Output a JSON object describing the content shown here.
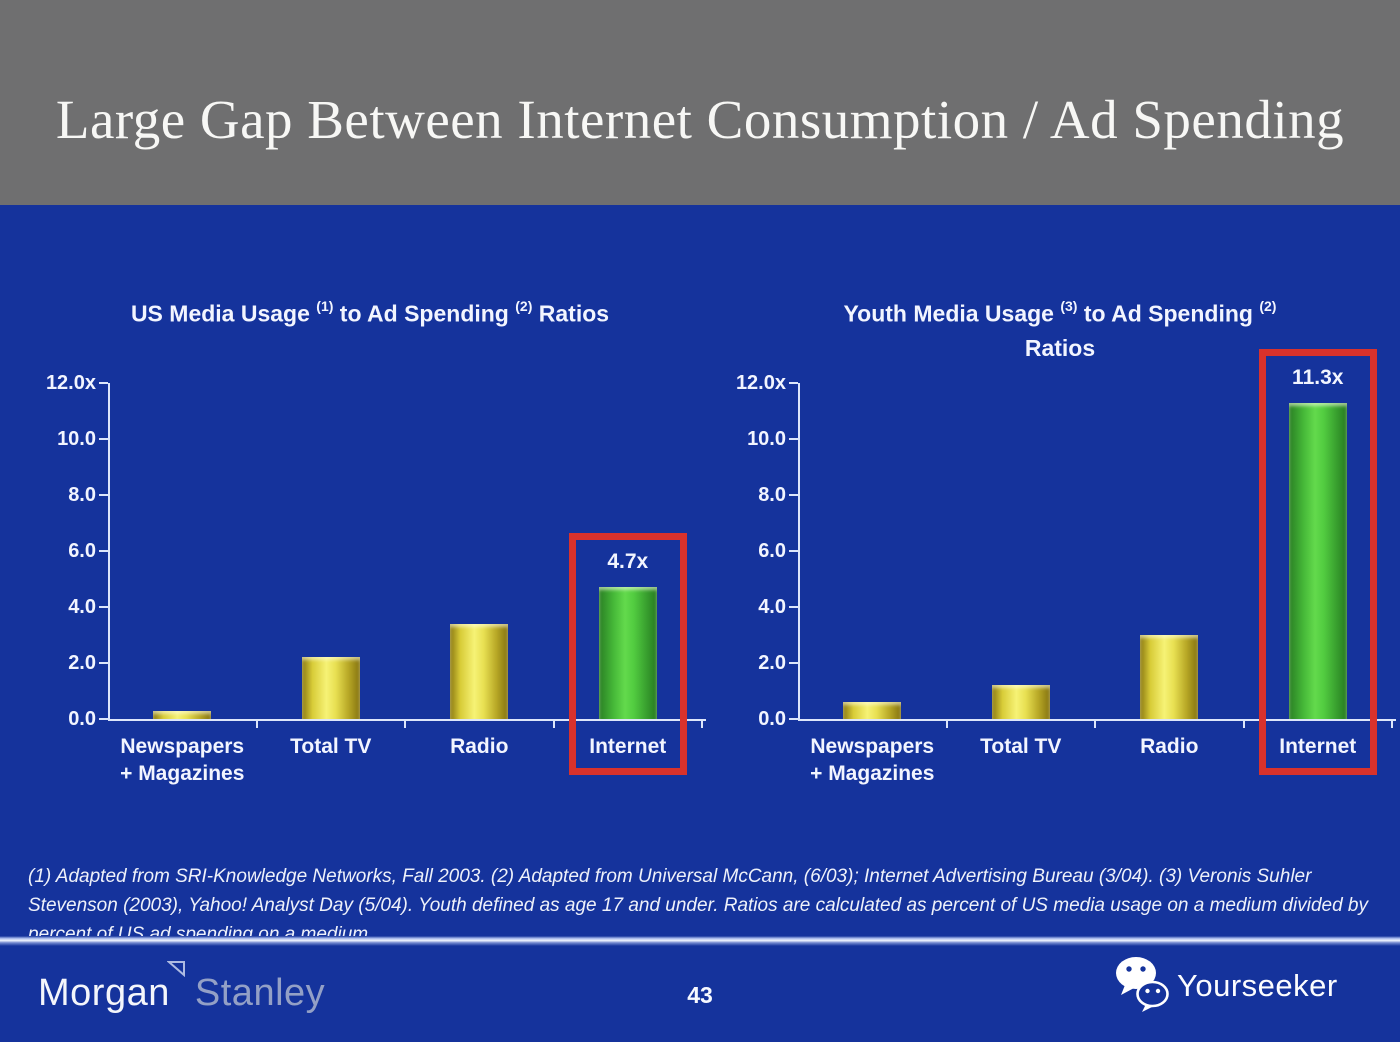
{
  "slide": {
    "title": "Large Gap Between Internet Consumption / Ad Spending",
    "footnote": "(1) Adapted from SRI-Knowledge Networks, Fall 2003.  (2) Adapted from Universal McCann, (6/03); Internet Advertising Bureau (3/04). (3) Veronis Suhler Stevenson (2003), Yahoo! Analyst Day (5/04).  Youth defined as age 17 and under.  Ratios are calculated as percent of US media usage on a medium divided by percent of US ad spending on a medium.",
    "page_number": "43"
  },
  "footer": {
    "brand_morgan": "Morgan",
    "brand_stanley": "Stanley",
    "brand_yourseeker": "Yourseeker",
    "wechat_icon": "wechat-chat-bubbles-icon",
    "morgan_stanley_triangle_icon": "triangle-outline-icon"
  },
  "colors": {
    "background_blue": "#15339c",
    "header_gray": "#6f6f70",
    "bar_yellow": "#e8d83a",
    "bar_green": "#4cc23e",
    "highlight_red": "#d8322c",
    "axis_white": "#dde6fb",
    "text_white": "#f2f5ff"
  },
  "chart_data": [
    {
      "type": "bar",
      "name": "us-media-usage-to-ad-spending-ratios",
      "title_lines": [
        [
          {
            "t": "US Media Usage ",
            "sup": false
          },
          {
            "t": "(1)",
            "sup": true
          },
          {
            "t": " to Ad Spending ",
            "sup": false
          },
          {
            "t": "(2)",
            "sup": true
          },
          {
            "t": " Ratios",
            "sup": false
          }
        ]
      ],
      "categories": [
        "Newspapers + Magazines",
        "Total TV",
        "Radio",
        "Internet"
      ],
      "category_lines": [
        [
          "Newspapers",
          "+ Magazines"
        ],
        [
          "Total TV"
        ],
        [
          "Radio"
        ],
        [
          "Internet"
        ]
      ],
      "values": [
        0.3,
        2.2,
        3.4,
        4.7
      ],
      "bar_colors": [
        "yellow",
        "yellow",
        "yellow",
        "green"
      ],
      "value_label": {
        "index": 3,
        "text": "4.7x"
      },
      "highlight_index": 3,
      "xlabel": "",
      "ylabel": "",
      "ylim": [
        0,
        12
      ],
      "yticks": [
        {
          "label": "12.0x",
          "value": 12
        },
        {
          "label": "10.0",
          "value": 10
        },
        {
          "label": "8.0",
          "value": 8
        },
        {
          "label": "6.0",
          "value": 6
        },
        {
          "label": "4.0",
          "value": 4
        },
        {
          "label": "2.0",
          "value": 2
        },
        {
          "label": "0.0",
          "value": 0
        }
      ],
      "grid": false,
      "legend": null
    },
    {
      "type": "bar",
      "name": "youth-media-usage-to-ad-spending-ratios",
      "title_lines": [
        [
          {
            "t": "Youth Media Usage ",
            "sup": false
          },
          {
            "t": "(3)",
            "sup": true
          },
          {
            "t": " to Ad Spending ",
            "sup": false
          },
          {
            "t": "(2)",
            "sup": true
          }
        ],
        [
          {
            "t": "Ratios",
            "sup": false
          }
        ]
      ],
      "categories": [
        "Newspapers + Magazines",
        "Total TV",
        "Radio",
        "Internet"
      ],
      "category_lines": [
        [
          "Newspapers",
          "+ Magazines"
        ],
        [
          "Total TV"
        ],
        [
          "Radio"
        ],
        [
          "Internet"
        ]
      ],
      "values": [
        0.6,
        1.2,
        3.0,
        11.3
      ],
      "bar_colors": [
        "yellow",
        "yellow",
        "yellow",
        "green"
      ],
      "value_label": {
        "index": 3,
        "text": "11.3x"
      },
      "highlight_index": 3,
      "xlabel": "",
      "ylabel": "",
      "ylim": [
        0,
        12
      ],
      "yticks": [
        {
          "label": "12.0x",
          "value": 12
        },
        {
          "label": "10.0",
          "value": 10
        },
        {
          "label": "8.0",
          "value": 8
        },
        {
          "label": "6.0",
          "value": 6
        },
        {
          "label": "4.0",
          "value": 4
        },
        {
          "label": "2.0",
          "value": 2
        },
        {
          "label": "0.0",
          "value": 0
        }
      ],
      "grid": false,
      "legend": null
    }
  ]
}
